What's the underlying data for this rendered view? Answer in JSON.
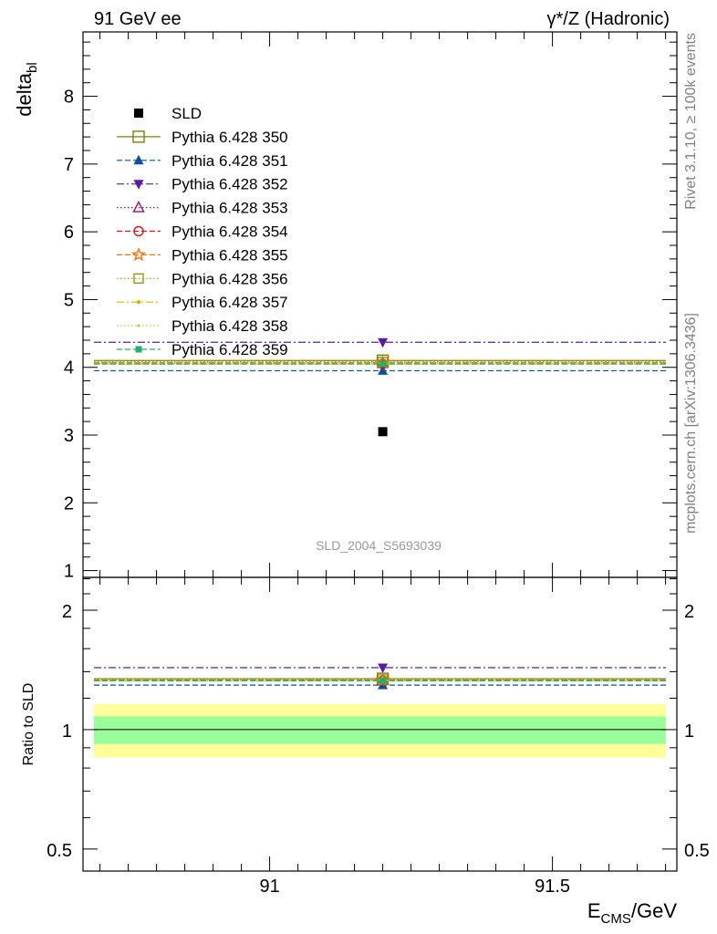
{
  "header": {
    "left": "91 GeV ee",
    "right": "γ*/Z (Hadronic)"
  },
  "side_labels": {
    "rivet": "Rivet 3.1.10, ≥ 100k events",
    "mcplots": "mcplots.cern.ch [arXiv:1306.3436]"
  },
  "watermark": "SLD_2004_S5693039",
  "chart_data": [
    {
      "type": "scatter",
      "panel": "main",
      "ylabel": "delta_bl",
      "ylim": [
        0.9,
        8.95
      ],
      "xlim": [
        90.67,
        91.72
      ],
      "yticks": [
        1,
        2,
        3,
        4,
        5,
        6,
        7,
        8
      ],
      "x": [
        91.2
      ],
      "series": [
        {
          "name": "SLD",
          "x": 91.2,
          "y": 3.05,
          "color": "#000000",
          "marker": "square-filled",
          "dash": "none",
          "kind": "data"
        },
        {
          "name": "Pythia 6.428 350",
          "y": 4.1,
          "color": "#808000",
          "marker": "square-open-large",
          "dash": "solid"
        },
        {
          "name": "Pythia 6.428 351",
          "y": 3.95,
          "color": "#0a4fa0",
          "marker": "triangle-up-filled",
          "dash": "dashed"
        },
        {
          "name": "Pythia 6.428 352",
          "y": 4.37,
          "color": "#5a1aa6",
          "marker": "triangle-down-filled",
          "dash": "dashdot"
        },
        {
          "name": "Pythia 6.428 353",
          "y": 4.06,
          "color": "#a0106c",
          "marker": "triangle-up-open",
          "dash": "dotted"
        },
        {
          "name": "Pythia 6.428 354",
          "y": 4.05,
          "color": "#e0101a",
          "marker": "circle-open",
          "dash": "dashed"
        },
        {
          "name": "Pythia 6.428 355",
          "y": 4.07,
          "color": "#f07010",
          "marker": "star-open",
          "dash": "dashed"
        },
        {
          "name": "Pythia 6.428 356",
          "y": 4.08,
          "color": "#88a010",
          "marker": "square-open",
          "dash": "dotted"
        },
        {
          "name": "Pythia 6.428 357",
          "y": 4.05,
          "color": "#d8b400",
          "marker": "dot-small",
          "dash": "dashdot"
        },
        {
          "name": "Pythia 6.428 358",
          "y": 4.06,
          "color": "#b0d020",
          "marker": "dot-tiny",
          "dash": "dotted"
        },
        {
          "name": "Pythia 6.428 359",
          "y": 4.05,
          "color": "#20b070",
          "marker": "square-filled-small",
          "dash": "dashed"
        }
      ]
    },
    {
      "type": "scatter",
      "panel": "ratio",
      "ylabel": "Ratio to SLD",
      "xlabel": "E_CMS/GeV",
      "xlim": [
        90.67,
        91.72
      ],
      "ylim": [
        0.44,
        2.42
      ],
      "yscale": "log",
      "yticks": [
        0.5,
        1,
        2
      ],
      "xticks": [
        91,
        91.5
      ],
      "bands": {
        "inner": [
          0.92,
          1.08
        ],
        "outer": [
          0.85,
          1.16
        ],
        "inner_color": "#99ff99",
        "outer_color": "#ffff99"
      },
      "series": [
        {
          "name": "Pythia 6.428 350",
          "y": 1.344
        },
        {
          "name": "Pythia 6.428 351",
          "y": 1.295
        },
        {
          "name": "Pythia 6.428 352",
          "y": 1.433
        },
        {
          "name": "Pythia 6.428 353",
          "y": 1.331
        },
        {
          "name": "Pythia 6.428 354",
          "y": 1.328
        },
        {
          "name": "Pythia 6.428 355",
          "y": 1.334
        },
        {
          "name": "Pythia 6.428 356",
          "y": 1.338
        },
        {
          "name": "Pythia 6.428 357",
          "y": 1.328
        },
        {
          "name": "Pythia 6.428 358",
          "y": 1.331
        },
        {
          "name": "Pythia 6.428 359",
          "y": 1.328
        }
      ]
    }
  ]
}
